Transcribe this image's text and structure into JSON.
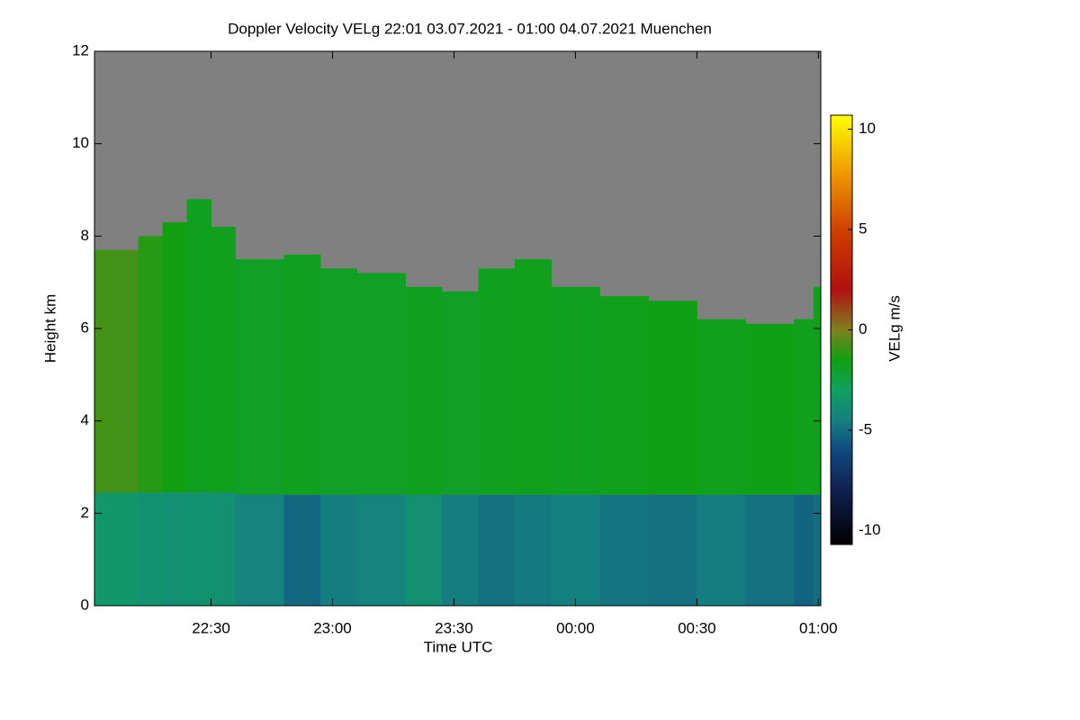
{
  "chart_data": {
    "type": "heatmap",
    "title": "Doppler Velocity VELg   22:01 03.07.2021 - 01:00 04.07.2021 Muenchen",
    "x_label": "Time UTC",
    "y_label": "Height km",
    "colorbar_label": "VELg m/s",
    "background": "#808080",
    "xlim": [
      22.02,
      25.01
    ],
    "xticks": [
      {
        "value": 22.5,
        "label": "22:30"
      },
      {
        "value": 23,
        "label": "23:00"
      },
      {
        "value": 23.5,
        "label": "23:30"
      },
      {
        "value": 24,
        "label": "00:00"
      },
      {
        "value": 24.5,
        "label": "00:30"
      },
      {
        "value": 25,
        "label": "01:00"
      }
    ],
    "ylim": [
      0,
      12
    ],
    "yticks": [
      0,
      2,
      4,
      6,
      8,
      10,
      12
    ],
    "zlim": [
      -10.7,
      10.7
    ],
    "zticks": [
      -10,
      -5,
      0,
      5,
      10
    ],
    "colormap": [
      {
        "value": -10.7,
        "color": "#000000"
      },
      {
        "value": -8,
        "color": "#102050"
      },
      {
        "value": -6,
        "color": "#104a80"
      },
      {
        "value": -4.5,
        "color": "#158080"
      },
      {
        "value": -3,
        "color": "#10a060"
      },
      {
        "value": -1.5,
        "color": "#10a010"
      },
      {
        "value": 0,
        "color": "#808020"
      },
      {
        "value": 2,
        "color": "#b01010"
      },
      {
        "value": 5,
        "color": "#d04000"
      },
      {
        "value": 8,
        "color": "#f0a000"
      },
      {
        "value": 10.7,
        "color": "#ffff00"
      }
    ],
    "x": [
      22.02,
      22.2,
      22.3,
      22.4,
      22.5,
      22.6,
      22.8,
      22.95,
      23.1,
      23.3,
      23.45,
      23.6,
      23.75,
      23.9,
      24.1,
      24.3,
      24.5,
      24.7,
      24.9,
      24.98
    ],
    "echo_top": [
      7.7,
      8.0,
      8.3,
      8.8,
      8.2,
      7.5,
      7.6,
      7.3,
      7.2,
      6.9,
      6.8,
      7.3,
      7.5,
      6.9,
      6.7,
      6.6,
      6.2,
      6.1,
      6.2,
      6.9
    ],
    "velocity_upper": [
      -0.8,
      -1.2,
      -1.5,
      -1.8,
      -1.7,
      -1.9,
      -1.8,
      -1.9,
      -1.9,
      -1.8,
      -1.9,
      -1.8,
      -1.7,
      -1.8,
      -1.7,
      -1.6,
      -1.7,
      -1.6,
      -1.7,
      -1.7
    ],
    "melting_layer": [
      2.45,
      2.45,
      2.45,
      2.45,
      2.45,
      2.4,
      2.4,
      2.4,
      2.4,
      2.4,
      2.4,
      2.4,
      2.4,
      2.4,
      2.4,
      2.4,
      2.4,
      2.4,
      2.4,
      2.4
    ],
    "velocity_lower": [
      -3.4,
      -3.6,
      -3.8,
      -3.7,
      -3.8,
      -4.3,
      -5.2,
      -4.6,
      -4.3,
      -3.8,
      -4.6,
      -4.9,
      -4.7,
      -4.5,
      -4.8,
      -4.9,
      -4.6,
      -4.9,
      -5.3,
      -5.0
    ]
  }
}
